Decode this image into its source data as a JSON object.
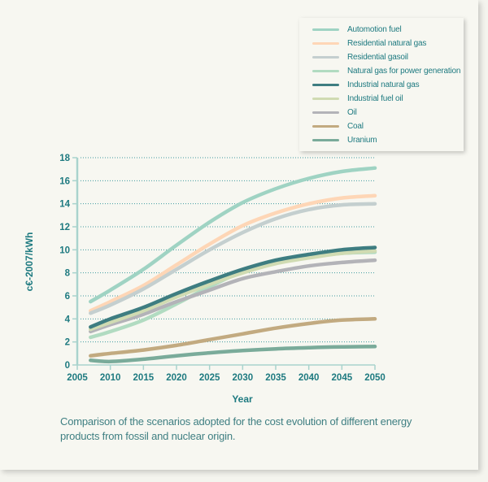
{
  "chart_data": {
    "type": "line",
    "title": "",
    "xlabel": "Year",
    "ylabel": "c€-2007/kWh",
    "xlim": [
      2005,
      2050
    ],
    "ylim": [
      0,
      18
    ],
    "xticks": [
      2005,
      2010,
      2015,
      2020,
      2025,
      2030,
      2035,
      2040,
      2045,
      2050
    ],
    "yticks": [
      0,
      2,
      4,
      6,
      8,
      10,
      12,
      14,
      16,
      18
    ],
    "grid": "horizontal dotted",
    "legend_position": "top-right",
    "x": [
      2007,
      2010,
      2015,
      2020,
      2025,
      2030,
      2035,
      2040,
      2045,
      2050
    ],
    "series": [
      {
        "name": "Automotion fuel",
        "color": "#9fd3c3",
        "values": [
          5.5,
          6.5,
          8.3,
          10.4,
          12.4,
          14.1,
          15.3,
          16.2,
          16.8,
          17.1
        ]
      },
      {
        "name": "Residential natural gas",
        "color": "#fed6b6",
        "values": [
          4.7,
          5.5,
          6.9,
          8.7,
          10.5,
          12.1,
          13.2,
          14.0,
          14.5,
          14.7
        ]
      },
      {
        "name": "Residential gasoil",
        "color": "#c4cfcf",
        "values": [
          4.5,
          5.2,
          6.6,
          8.3,
          10.0,
          11.5,
          12.7,
          13.5,
          13.9,
          14.0
        ]
      },
      {
        "name": "Natural gas for power generation",
        "color": "#b1dbc1",
        "values": [
          2.4,
          2.9,
          3.9,
          5.3,
          6.8,
          8.1,
          8.9,
          9.4,
          9.7,
          9.8
        ]
      },
      {
        "name": "Industrial natural gas",
        "color": "#3e7d81",
        "values": [
          3.3,
          4.0,
          5.0,
          6.2,
          7.3,
          8.3,
          9.1,
          9.6,
          10.0,
          10.2
        ]
      },
      {
        "name": "Industrial fuel oil",
        "color": "#d0dbb2",
        "values": [
          3.1,
          3.7,
          4.7,
          5.9,
          7.0,
          8.0,
          8.8,
          9.3,
          9.7,
          9.9
        ]
      },
      {
        "name": "Oil",
        "color": "#b3b3b8",
        "values": [
          2.9,
          3.5,
          4.4,
          5.5,
          6.5,
          7.5,
          8.1,
          8.6,
          8.9,
          9.1
        ]
      },
      {
        "name": "Coal",
        "color": "#c2aa80",
        "values": [
          0.8,
          1.0,
          1.3,
          1.7,
          2.2,
          2.7,
          3.2,
          3.6,
          3.9,
          4.0
        ]
      },
      {
        "name": "Uranium",
        "color": "#7aab9a",
        "values": [
          0.4,
          0.3,
          0.5,
          0.8,
          1.05,
          1.25,
          1.4,
          1.5,
          1.57,
          1.6
        ]
      }
    ]
  },
  "caption": "Comparison of the scenarios adopted for the cost evolution of different energy products from fossil and nuclear origin.",
  "colors": {
    "axis": "#a9d3cd",
    "text": "#1e7a80",
    "grid": "#3f9aa0"
  }
}
